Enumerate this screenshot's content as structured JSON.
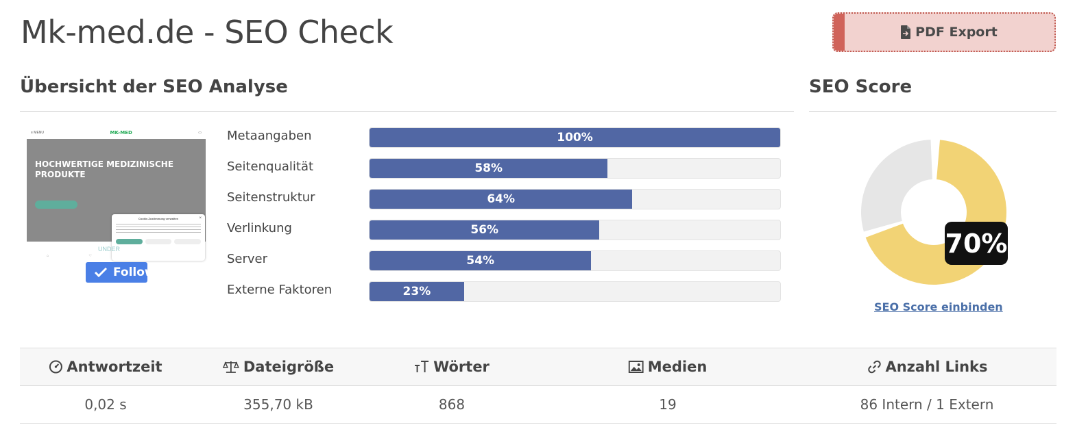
{
  "header": {
    "title": "Mk-med.de - SEO Check",
    "pdf_export_label": "PDF Export"
  },
  "overview": {
    "title": "Übersicht der SEO Analyse",
    "metrics": [
      {
        "label": "Metaangaben",
        "value": 100,
        "display": "100%"
      },
      {
        "label": "Seitenqualität",
        "value": 58,
        "display": "58%"
      },
      {
        "label": "Seitenstruktur",
        "value": 64,
        "display": "64%"
      },
      {
        "label": "Verlinkung",
        "value": 56,
        "display": "56%"
      },
      {
        "label": "Server",
        "value": 54,
        "display": "54%"
      },
      {
        "label": "Externe Faktoren",
        "value": 23,
        "display": "23%"
      }
    ]
  },
  "thumbnail": {
    "menu": "≡ MENU",
    "logo": "MK-MED",
    "hero_heading": "HOCHWERTIGE MEDIZINISCHE PRODUKTE",
    "cookie_title": "Cookie-Zustimmung verwalten",
    "under_text": "UNDER",
    "follow_label": "Follow"
  },
  "score": {
    "title": "SEO Score",
    "value": 70,
    "display": "70%",
    "link_label": "SEO Score einbinden",
    "colors": {
      "filled": "#f2d375",
      "empty": "#e6e6e6"
    }
  },
  "stats": {
    "headers": [
      {
        "label": "Antwortzeit",
        "icon": "gauge-icon"
      },
      {
        "label": "Dateigröße",
        "icon": "scale-icon"
      },
      {
        "label": "Wörter",
        "icon": "text-size-icon"
      },
      {
        "label": "Medien",
        "icon": "image-icon"
      },
      {
        "label": "Anzahl Links",
        "icon": "link-icon"
      }
    ],
    "values": [
      "0,02 s",
      "355,70 kB",
      "868",
      "19",
      "86 Intern / 1 Extern"
    ]
  }
}
